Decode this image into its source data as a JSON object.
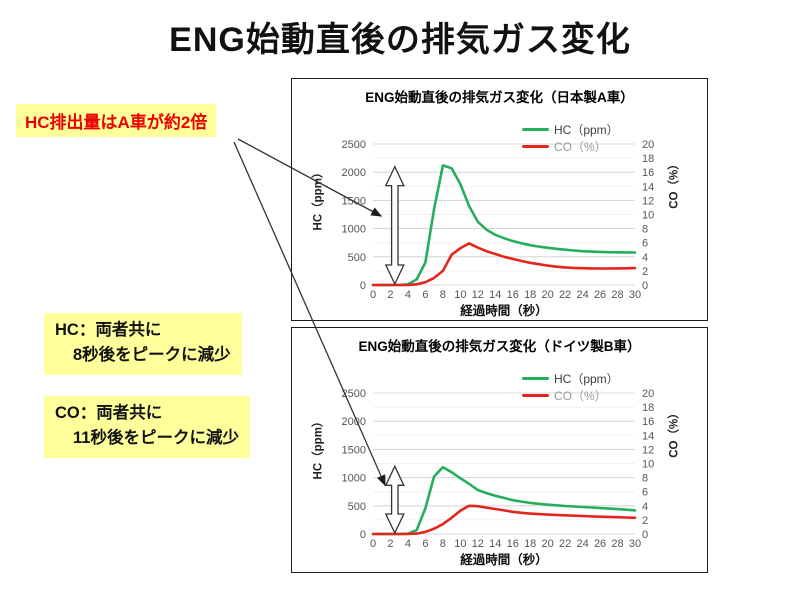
{
  "slide_title": "ENG始動直後の排気ガス変化",
  "callouts": {
    "hc_double": "HC排出量はA車が約2倍",
    "hc_peak_line1": "HC：両者共に",
    "hc_peak_line2": "8秒後をピークに減少",
    "co_peak_line1": "CO：両者共に",
    "co_peak_line2": "11秒後をピークに減少"
  },
  "colors": {
    "hc_line": "#27ae5a",
    "co_line": "#e2261d",
    "callout_bg": "#ffff9b",
    "callout_accent_text": "#ee0000",
    "grid_major": "#d9d9d9",
    "grid_minor": "#f0f0f0",
    "tick_text": "#555555"
  },
  "chart_data": [
    {
      "type": "line",
      "title": "ENG始動直後の排気ガス変化（日本製A車）",
      "xlabel": "経過時間（秒）",
      "ylabel_left": "HC（ppm）",
      "ylabel_right": "CO（%）",
      "legend_position": "top-right",
      "grid": true,
      "xlim": [
        0,
        30
      ],
      "x_ticks": [
        0,
        2,
        4,
        6,
        8,
        10,
        12,
        14,
        16,
        18,
        20,
        22,
        24,
        26,
        28,
        30
      ],
      "ylim_left": [
        0,
        2500
      ],
      "yticks_left": [
        0,
        500,
        1000,
        1500,
        2000,
        2500
      ],
      "ylim_right": [
        0,
        20
      ],
      "yticks_right": [
        0,
        2,
        4,
        6,
        8,
        10,
        12,
        14,
        16,
        18,
        20
      ],
      "x": [
        0,
        1,
        2,
        3,
        4,
        5,
        6,
        7,
        8,
        9,
        10,
        11,
        12,
        13,
        14,
        15,
        16,
        17,
        18,
        19,
        20,
        21,
        22,
        23,
        24,
        25,
        26,
        27,
        28,
        29,
        30
      ],
      "series": [
        {
          "name": "HC（ppm）",
          "axis": "left",
          "color": "#27ae5a",
          "values": [
            0,
            0,
            0,
            0,
            10,
            100,
            400,
            1350,
            2120,
            2070,
            1790,
            1400,
            1120,
            980,
            890,
            830,
            780,
            740,
            705,
            680,
            660,
            642,
            626,
            612,
            600,
            592,
            586,
            582,
            580,
            578,
            576
          ]
        },
        {
          "name": "CO（%）",
          "axis": "right",
          "color": "#e2261d",
          "values": [
            0,
            0,
            0,
            0,
            0,
            0.1,
            0.4,
            1.0,
            2.0,
            4.3,
            5.2,
            5.9,
            5.3,
            4.8,
            4.4,
            4.0,
            3.7,
            3.4,
            3.15,
            2.95,
            2.75,
            2.6,
            2.5,
            2.42,
            2.38,
            2.35,
            2.34,
            2.34,
            2.35,
            2.37,
            2.4
          ]
        }
      ],
      "annotation_arrow": {
        "x": 2.5,
        "from": 0,
        "to": 2100,
        "axis": "left"
      }
    },
    {
      "type": "line",
      "title": "ENG始動直後の排気ガス変化（ドイツ製B車）",
      "xlabel": "経過時間（秒）",
      "ylabel_left": "HC（ppm）",
      "ylabel_right": "CO（%）",
      "legend_position": "top-right",
      "grid": true,
      "xlim": [
        0,
        30
      ],
      "x_ticks": [
        0,
        2,
        4,
        6,
        8,
        10,
        12,
        14,
        16,
        18,
        20,
        22,
        24,
        26,
        28,
        30
      ],
      "ylim_left": [
        0,
        2500
      ],
      "yticks_left": [
        0,
        500,
        1000,
        1500,
        2000,
        2500
      ],
      "ylim_right": [
        0,
        20
      ],
      "yticks_right": [
        0,
        2,
        4,
        6,
        8,
        10,
        12,
        14,
        16,
        18,
        20
      ],
      "x": [
        0,
        1,
        2,
        3,
        4,
        5,
        6,
        7,
        8,
        9,
        10,
        11,
        12,
        13,
        14,
        15,
        16,
        17,
        18,
        19,
        20,
        21,
        22,
        23,
        24,
        25,
        26,
        27,
        28,
        29,
        30
      ],
      "series": [
        {
          "name": "HC（ppm）",
          "axis": "left",
          "color": "#27ae5a",
          "values": [
            0,
            0,
            0,
            0,
            5,
            70,
            460,
            1020,
            1185,
            1095,
            990,
            890,
            780,
            725,
            678,
            640,
            600,
            575,
            552,
            535,
            520,
            508,
            497,
            487,
            478,
            469,
            460,
            451,
            442,
            430,
            418
          ]
        },
        {
          "name": "CO（%）",
          "axis": "right",
          "color": "#e2261d",
          "values": [
            0,
            0,
            0,
            0,
            0,
            0.05,
            0.3,
            0.75,
            1.4,
            2.3,
            3.3,
            4.0,
            3.95,
            3.75,
            3.55,
            3.35,
            3.15,
            3.0,
            2.9,
            2.82,
            2.75,
            2.7,
            2.65,
            2.6,
            2.55,
            2.5,
            2.46,
            2.42,
            2.38,
            2.34,
            2.3
          ]
        }
      ],
      "annotation_arrow": {
        "x": 2.5,
        "from": 0,
        "to": 1200,
        "axis": "left"
      }
    }
  ]
}
